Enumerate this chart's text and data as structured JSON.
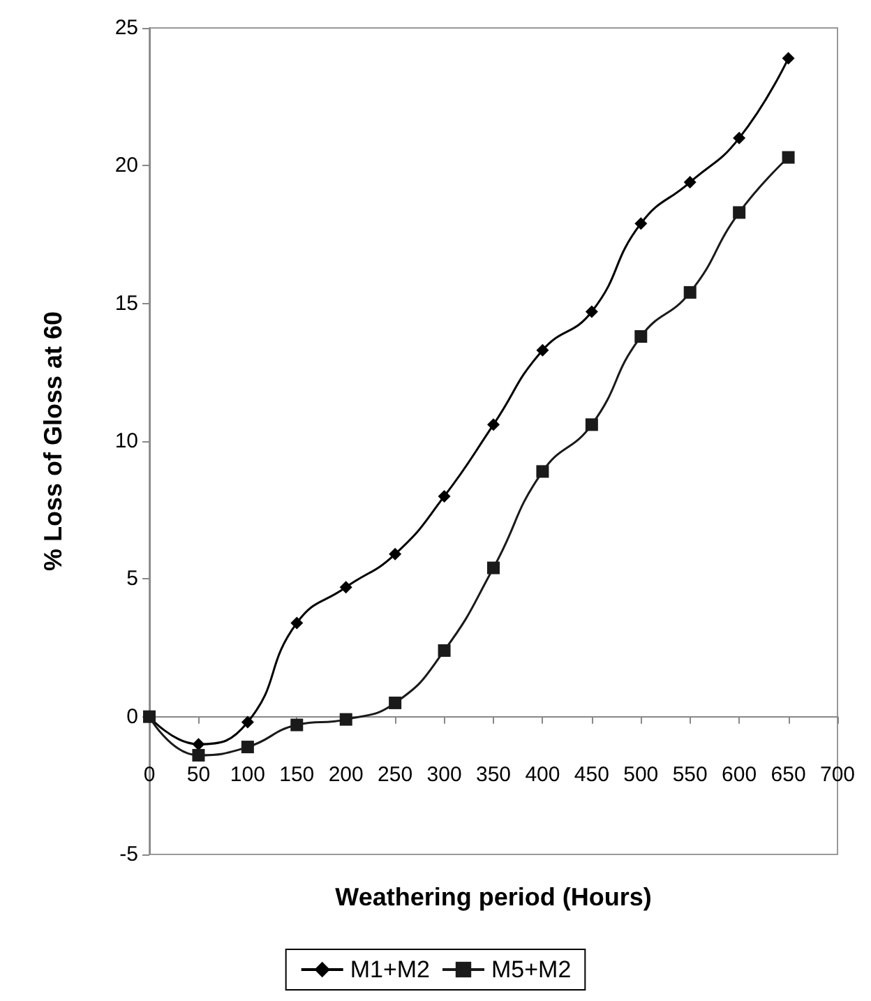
{
  "chart_data": {
    "type": "line",
    "xlabel": "Weathering period (Hours)",
    "ylabel": "% Loss of Gloss at 60",
    "x": [
      0,
      50,
      100,
      150,
      200,
      250,
      300,
      350,
      400,
      450,
      500,
      550,
      600,
      650
    ],
    "series": [
      {
        "name": "M1+M2",
        "color": "#000000",
        "marker": "diamond",
        "values": [
          0,
          -1.0,
          -0.2,
          3.4,
          4.7,
          5.9,
          8.0,
          10.6,
          13.3,
          14.7,
          17.9,
          19.4,
          21.0,
          23.9
        ]
      },
      {
        "name": "M5+M2",
        "color": "#1a1a1a",
        "marker": "square",
        "values": [
          0,
          -1.4,
          -1.1,
          -0.3,
          -0.1,
          0.5,
          2.4,
          5.4,
          8.9,
          10.6,
          13.8,
          15.4,
          18.3,
          20.3
        ]
      }
    ],
    "xlim": [
      0,
      700
    ],
    "xticks": [
      0,
      50,
      100,
      150,
      200,
      250,
      300,
      350,
      400,
      450,
      500,
      550,
      600,
      650,
      700
    ],
    "ylim": [
      -5,
      25
    ],
    "yticks": [
      -5,
      0,
      5,
      10,
      15,
      20,
      25
    ],
    "grid": false,
    "legend": "bottom",
    "line_style": "solid"
  }
}
